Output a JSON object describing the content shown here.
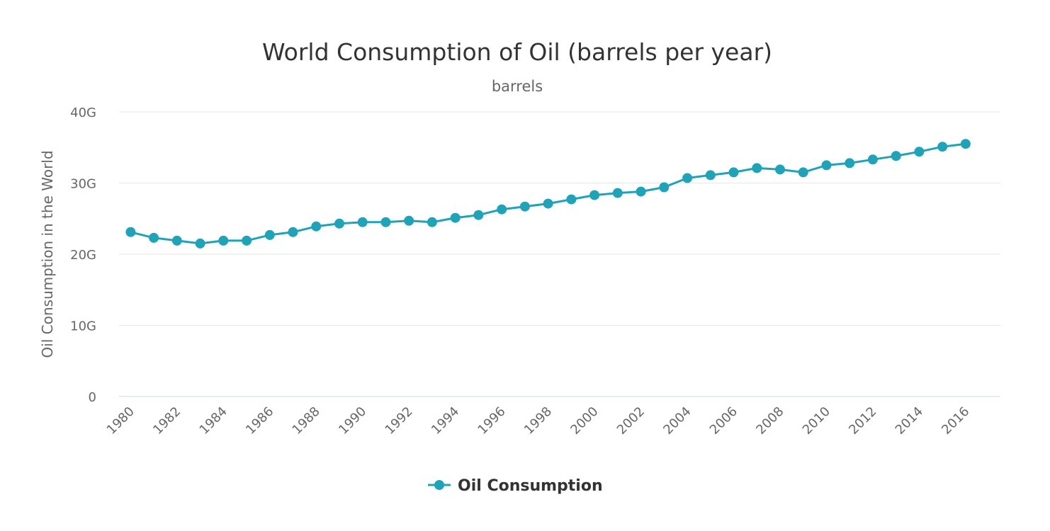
{
  "chart_data": {
    "type": "line",
    "title": "World Consumption of Oil (barrels per year)",
    "subtitle": "barrels",
    "ylabel": "Oil Consumption in the World",
    "xlabel": "",
    "ylim": [
      0,
      40
    ],
    "y_ticks": [
      0,
      10,
      20,
      30,
      40
    ],
    "y_tick_labels": [
      "0",
      "10G",
      "20G",
      "30G",
      "40G"
    ],
    "x_tick_labels": [
      "1980",
      "1982",
      "1984",
      "1986",
      "1988",
      "1990",
      "1992",
      "1994",
      "1996",
      "1998",
      "2000",
      "2002",
      "2004",
      "2006",
      "2008",
      "2010",
      "2012",
      "2014",
      "2016"
    ],
    "grid": true,
    "legend": "bottom-center",
    "color": "#1fa3b8",
    "x": [
      1980,
      1981,
      1982,
      1983,
      1984,
      1985,
      1986,
      1987,
      1988,
      1989,
      1990,
      1991,
      1992,
      1993,
      1994,
      1995,
      1996,
      1997,
      1998,
      1999,
      2000,
      2001,
      2002,
      2003,
      2004,
      2005,
      2006,
      2007,
      2008,
      2009,
      2010,
      2011,
      2012,
      2013,
      2014,
      2015,
      2016
    ],
    "series": [
      {
        "name": "Oil Consumption",
        "values": [
          23.1,
          22.3,
          21.9,
          21.5,
          21.9,
          21.9,
          22.7,
          23.1,
          23.9,
          24.3,
          24.5,
          24.5,
          24.7,
          24.5,
          25.1,
          25.5,
          26.3,
          26.7,
          27.1,
          27.7,
          28.3,
          28.6,
          28.8,
          29.4,
          30.7,
          31.1,
          31.5,
          32.1,
          31.9,
          31.5,
          32.5,
          32.8,
          33.3,
          33.8,
          34.4,
          35.1,
          35.5
        ]
      }
    ]
  }
}
